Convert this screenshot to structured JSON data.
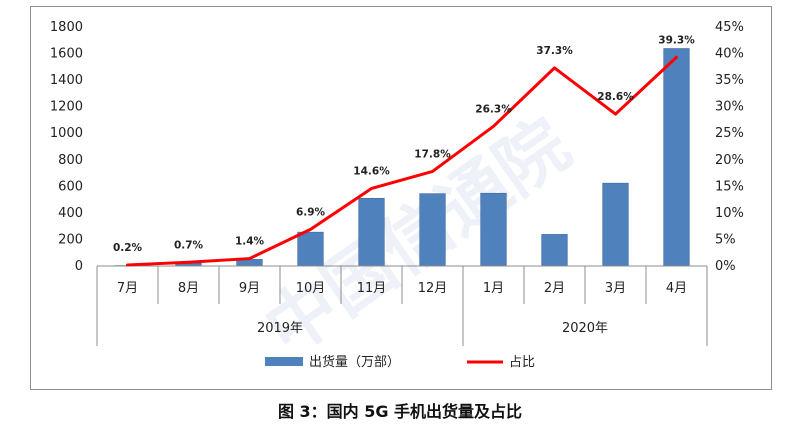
{
  "watermark": "中国信通院",
  "caption": "图 3：国内 5G 手机出货量及占比",
  "chart_data": {
    "type": "bar",
    "categories": [
      "7月",
      "8月",
      "9月",
      "10月",
      "11月",
      "12月",
      "1月",
      "2月",
      "3月",
      "4月"
    ],
    "year_groups": [
      {
        "label": "2019年",
        "from": 0,
        "to": 5
      },
      {
        "label": "2020年",
        "from": 6,
        "to": 9
      }
    ],
    "series": [
      {
        "name": "出货量（万部）",
        "type": "bar",
        "axis": "left",
        "values": [
          3,
          20,
          50,
          255,
          510,
          545,
          548,
          238,
          624,
          1638
        ]
      },
      {
        "name": "占比",
        "type": "line",
        "axis": "right",
        "values": [
          0.2,
          0.7,
          1.4,
          6.9,
          14.6,
          17.8,
          26.3,
          37.3,
          28.6,
          39.3
        ],
        "labels": [
          "0.2%",
          "0.7%",
          "1.4%",
          "6.9%",
          "14.6%",
          "17.8%",
          "26.3%",
          "37.3%",
          "28.6%",
          "39.3%"
        ]
      }
    ],
    "left_axis": {
      "min": 0,
      "max": 1800,
      "step": 200,
      "ticks": [
        "0",
        "200",
        "400",
        "600",
        "800",
        "1000",
        "1200",
        "1400",
        "1600",
        "1800"
      ]
    },
    "right_axis": {
      "min": 0,
      "max": 45,
      "step": 5,
      "ticks": [
        "0%",
        "5%",
        "10%",
        "15%",
        "20%",
        "25%",
        "30%",
        "35%",
        "40%",
        "45%"
      ]
    },
    "colors": {
      "bar": "#4f81bd",
      "bar_edge": "#3c6aa1",
      "line": "#ff0000"
    },
    "legend_position": "bottom",
    "grid": false
  }
}
